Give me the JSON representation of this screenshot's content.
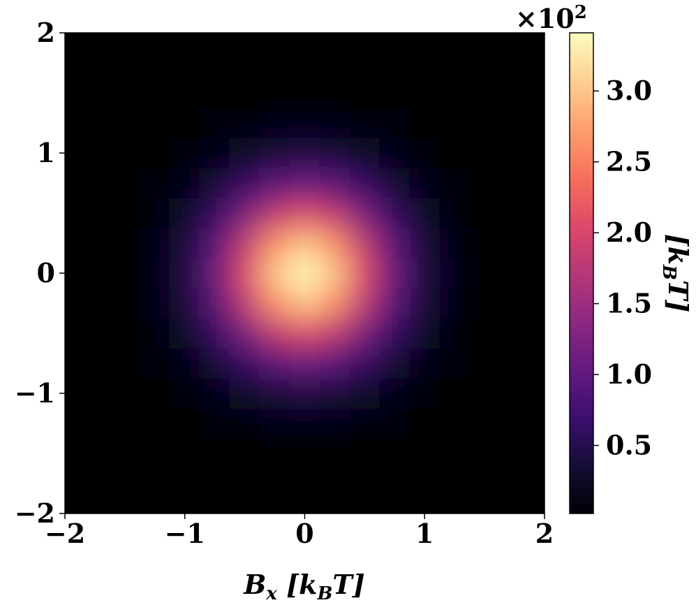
{
  "chart_data": {
    "type": "heatmap",
    "xlabel": [
      "B",
      "x",
      " [k",
      "B",
      "T]"
    ],
    "colorbar_label": [
      "[k",
      "B",
      "T]"
    ],
    "colorbar_offset": [
      "×10",
      "2"
    ],
    "colormap": "magma",
    "x": [
      -2,
      -1.75,
      -1.5,
      -1.25,
      -1,
      -0.75,
      -0.5,
      -0.25,
      0,
      0.25,
      0.5,
      0.75,
      1,
      1.25,
      1.5,
      1.75,
      2
    ],
    "y": [
      -2,
      -1.75,
      -1.5,
      -1.25,
      -1,
      -0.75,
      -0.5,
      -0.25,
      0,
      0.25,
      0.5,
      0.75,
      1,
      1.25,
      1.5,
      1.75,
      2
    ],
    "z": [
      [
        0,
        0,
        0,
        0,
        0,
        0,
        0,
        0,
        0,
        0,
        0,
        0,
        0,
        0,
        0,
        0,
        0
      ],
      [
        0,
        0,
        0,
        0,
        0,
        0,
        0,
        0.01,
        0.01,
        0.01,
        0,
        0,
        0,
        0,
        0,
        0,
        0
      ],
      [
        0,
        0,
        0,
        0,
        0,
        0.01,
        0.02,
        0.03,
        0.03,
        0.03,
        0.02,
        0.01,
        0,
        0,
        0,
        0,
        0
      ],
      [
        0,
        0,
        0,
        0.01,
        0.02,
        0.04,
        0.08,
        0.12,
        0.13,
        0.12,
        0.08,
        0.04,
        0.02,
        0.01,
        0,
        0,
        0
      ],
      [
        0,
        0,
        0,
        0.02,
        0.05,
        0.13,
        0.25,
        0.37,
        0.42,
        0.37,
        0.25,
        0.13,
        0.05,
        0.02,
        0,
        0,
        0
      ],
      [
        0,
        0,
        0.01,
        0.04,
        0.13,
        0.33,
        0.63,
        0.92,
        1.05,
        0.92,
        0.63,
        0.33,
        0.13,
        0.04,
        0.01,
        0,
        0
      ],
      [
        0,
        0,
        0.02,
        0.08,
        0.25,
        0.63,
        1.2,
        1.77,
        2.02,
        1.77,
        1.2,
        0.63,
        0.25,
        0.08,
        0.02,
        0,
        0
      ],
      [
        0,
        0.01,
        0.03,
        0.12,
        0.37,
        0.92,
        1.77,
        2.62,
        2.98,
        2.62,
        1.77,
        0.92,
        0.37,
        0.12,
        0.03,
        0.01,
        0
      ],
      [
        0,
        0.01,
        0.03,
        0.13,
        0.42,
        1.05,
        2.02,
        2.98,
        3.4,
        2.98,
        2.02,
        1.05,
        0.42,
        0.13,
        0.03,
        0.01,
        0
      ],
      [
        0,
        0.01,
        0.03,
        0.12,
        0.37,
        0.92,
        1.77,
        2.62,
        2.98,
        2.62,
        1.77,
        0.92,
        0.37,
        0.12,
        0.03,
        0.01,
        0
      ],
      [
        0,
        0,
        0.02,
        0.08,
        0.25,
        0.63,
        1.2,
        1.77,
        2.02,
        1.77,
        1.2,
        0.63,
        0.25,
        0.08,
        0.02,
        0,
        0
      ],
      [
        0,
        0,
        0.01,
        0.04,
        0.13,
        0.33,
        0.63,
        0.92,
        1.05,
        0.92,
        0.63,
        0.33,
        0.13,
        0.04,
        0.01,
        0,
        0
      ],
      [
        0,
        0,
        0,
        0.02,
        0.05,
        0.13,
        0.25,
        0.37,
        0.42,
        0.37,
        0.25,
        0.13,
        0.05,
        0.02,
        0,
        0,
        0
      ],
      [
        0,
        0,
        0,
        0.01,
        0.02,
        0.04,
        0.08,
        0.12,
        0.13,
        0.12,
        0.08,
        0.04,
        0.02,
        0.01,
        0,
        0,
        0
      ],
      [
        0,
        0,
        0,
        0,
        0,
        0.01,
        0.02,
        0.03,
        0.03,
        0.03,
        0.02,
        0.01,
        0,
        0,
        0,
        0,
        0
      ],
      [
        0,
        0,
        0,
        0,
        0,
        0,
        0,
        0.01,
        0.01,
        0.01,
        0,
        0,
        0,
        0,
        0,
        0,
        0
      ],
      [
        0,
        0,
        0,
        0,
        0,
        0,
        0,
        0,
        0,
        0,
        0,
        0,
        0,
        0,
        0,
        0,
        0
      ]
    ],
    "xlim": [
      -2,
      2
    ],
    "ylim": [
      -2,
      2
    ],
    "xticks": [
      {
        "value": -2,
        "label": "−2"
      },
      {
        "value": -1,
        "label": "−1"
      },
      0,
      1,
      2
    ],
    "yticks": [
      {
        "value": -2,
        "label": "−2"
      },
      {
        "value": -1,
        "label": "−1"
      },
      0,
      1,
      2
    ],
    "clim": [
      0.02,
      3.41
    ],
    "cticks": [
      0.5,
      1.0,
      1.5,
      2.0,
      2.5,
      3.0
    ],
    "ctick_labels": [
      "0.5",
      "1.0",
      "1.5",
      "2.0",
      "2.5",
      "3.0"
    ]
  }
}
